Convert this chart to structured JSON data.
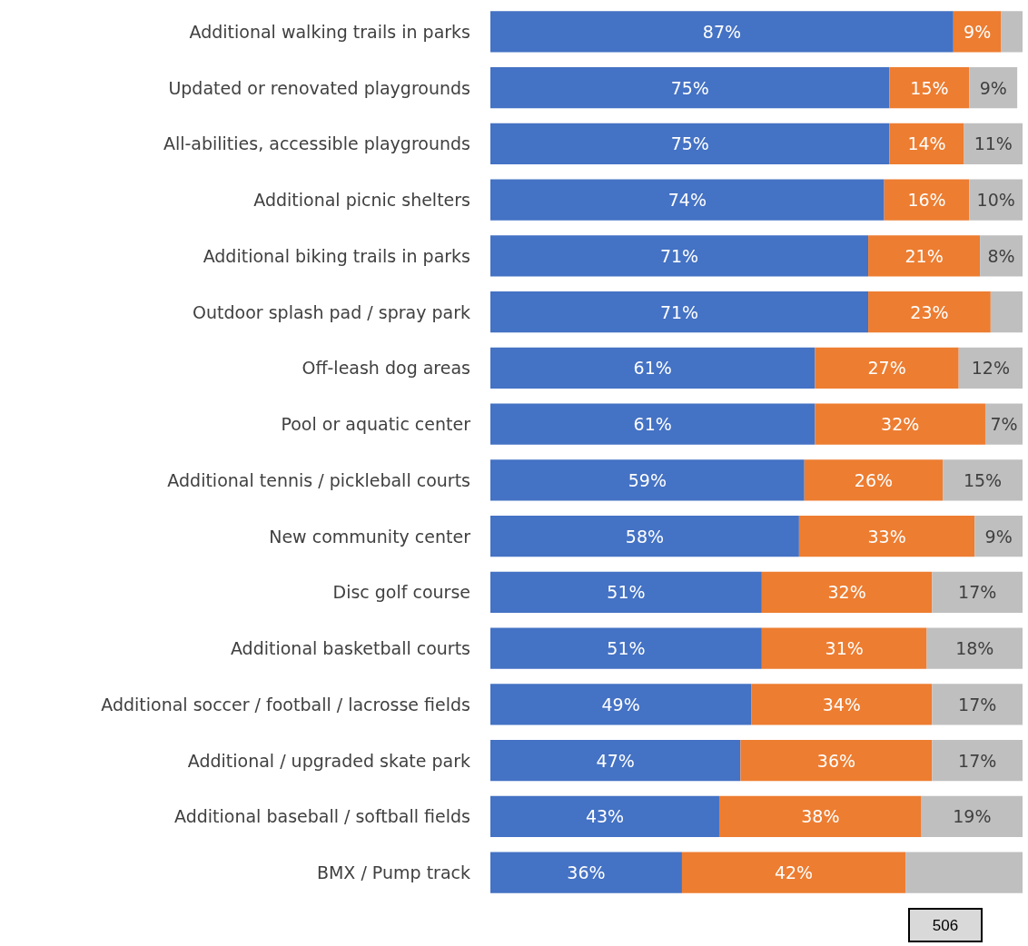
{
  "chart_data": {
    "type": "bar",
    "orientation": "horizontal",
    "stacked": true,
    "categories": [
      "Additional walking trails in parks",
      "Updated or renovated playgrounds",
      "All-abilities, accessible playgrounds",
      "Additional picnic shelters",
      "Additional biking trails in parks",
      "Outdoor splash pad / spray park",
      "Off-leash dog areas",
      "Pool or aquatic center",
      "Additional tennis / pickleball courts",
      "New community center",
      "Disc golf course",
      "Additional basketball courts",
      "Additional soccer / football / lacrosse fields",
      "Additional / upgraded skate park",
      "Additional baseball / softball fields",
      "BMX / Pump track"
    ],
    "series": [
      {
        "color": "#4472c4",
        "values": [
          87,
          75,
          75,
          74,
          71,
          71,
          61,
          61,
          59,
          58,
          51,
          51,
          49,
          47,
          43,
          36
        ],
        "value_labels": [
          "87%",
          "75%",
          "75%",
          "74%",
          "71%",
          "71%",
          "61%",
          "61%",
          "59%",
          "58%",
          "51%",
          "51%",
          "49%",
          "47%",
          "43%",
          "36%"
        ]
      },
      {
        "color": "#ed7d31",
        "values": [
          9,
          15,
          14,
          16,
          21,
          23,
          27,
          32,
          26,
          33,
          32,
          31,
          34,
          36,
          38,
          42
        ],
        "value_labels": [
          "9%",
          "15%",
          "14%",
          "16%",
          "21%",
          "23%",
          "27%",
          "32%",
          "26%",
          "33%",
          "32%",
          "31%",
          "34%",
          "36%",
          "38%",
          "42%"
        ]
      },
      {
        "color": "#bfbfbf",
        "values": [
          4,
          9,
          11,
          10,
          8,
          6,
          12,
          7,
          15,
          9,
          17,
          18,
          17,
          17,
          19,
          22
        ],
        "value_labels": [
          null,
          "9%",
          "11%",
          "10%",
          "8%",
          null,
          "12%",
          "7%",
          "15%",
          "9%",
          "17%",
          "18%",
          "17%",
          "17%",
          "19%",
          null
        ]
      }
    ],
    "annotations": [
      "506"
    ]
  }
}
